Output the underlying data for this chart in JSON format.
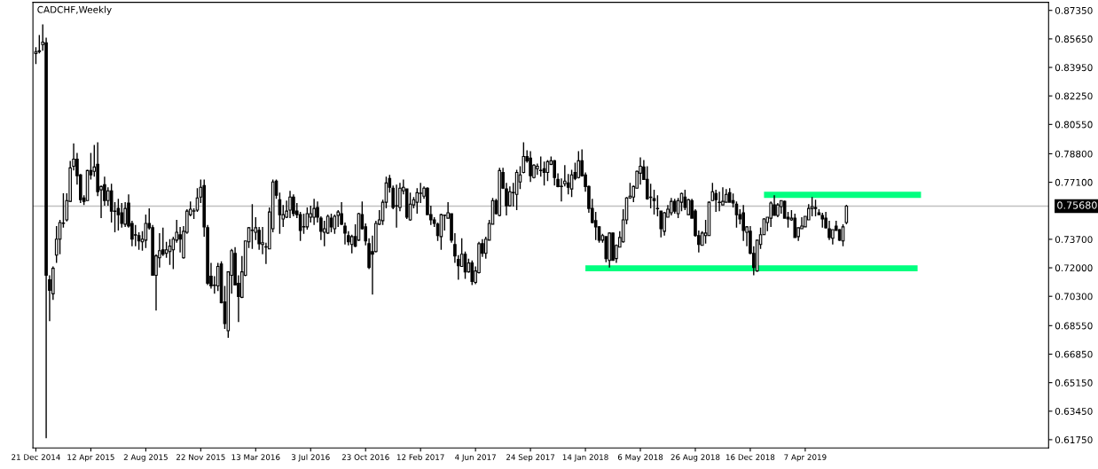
{
  "chart_data": {
    "type": "candlestick",
    "title": "CADCHF,Weekly",
    "color": "#000000",
    "x": [
      "2014-12-21",
      "2014-12-28",
      "2015-01-04",
      "2015-01-11",
      "2015-01-18",
      "2015-01-25",
      "2015-02-01",
      "2015-02-08",
      "2015-02-15",
      "2015-02-22",
      "2015-03-01",
      "2015-03-08",
      "2015-03-15",
      "2015-03-22",
      "2015-03-29",
      "2015-04-05",
      "2015-04-12",
      "2015-04-19",
      "2015-04-26",
      "2015-05-03",
      "2015-05-10",
      "2015-05-17",
      "2015-05-24",
      "2015-05-31",
      "2015-06-07",
      "2015-06-14",
      "2015-06-21",
      "2015-06-28",
      "2015-07-05",
      "2015-07-12",
      "2015-07-19",
      "2015-07-26",
      "2015-08-02",
      "2015-08-09",
      "2015-08-16",
      "2015-08-23",
      "2015-08-30",
      "2015-09-06",
      "2015-09-13",
      "2015-09-20",
      "2015-09-27",
      "2015-10-04",
      "2015-10-11",
      "2015-10-18",
      "2015-10-25",
      "2015-11-01",
      "2015-11-08",
      "2015-11-15",
      "2015-11-22",
      "2015-11-29",
      "2015-12-06",
      "2015-12-13",
      "2015-12-20",
      "2015-12-27",
      "2016-01-03",
      "2016-01-10",
      "2016-01-17",
      "2016-01-24",
      "2016-01-31",
      "2016-02-07",
      "2016-02-14",
      "2016-02-21",
      "2016-02-28",
      "2016-03-06",
      "2016-03-13",
      "2016-03-20",
      "2016-03-27",
      "2016-04-03",
      "2016-04-10",
      "2016-04-17",
      "2016-04-24",
      "2016-05-01",
      "2016-05-08",
      "2016-05-15",
      "2016-05-22",
      "2016-05-29",
      "2016-06-05",
      "2016-06-12",
      "2016-06-19",
      "2016-06-26",
      "2016-07-03",
      "2016-07-10",
      "2016-07-17",
      "2016-07-24",
      "2016-07-31",
      "2016-08-07",
      "2016-08-14",
      "2016-08-21",
      "2016-08-28",
      "2016-09-04",
      "2016-09-11",
      "2016-09-18",
      "2016-09-25",
      "2016-10-02",
      "2016-10-09",
      "2016-10-16",
      "2016-10-23",
      "2016-10-30",
      "2016-11-06",
      "2016-11-13",
      "2016-11-20",
      "2016-11-27",
      "2016-12-04",
      "2016-12-11",
      "2016-12-18",
      "2016-12-25",
      "2017-01-01",
      "2017-01-08",
      "2017-01-15",
      "2017-01-22",
      "2017-01-29",
      "2017-02-05",
      "2017-02-12",
      "2017-02-19",
      "2017-02-26",
      "2017-03-05",
      "2017-03-12",
      "2017-03-19",
      "2017-03-26",
      "2017-04-02",
      "2017-04-09",
      "2017-04-16",
      "2017-04-23",
      "2017-04-30",
      "2017-05-07",
      "2017-05-14",
      "2017-05-21",
      "2017-05-28",
      "2017-06-04",
      "2017-06-11",
      "2017-06-18",
      "2017-06-25",
      "2017-07-02",
      "2017-07-09",
      "2017-07-16",
      "2017-07-23",
      "2017-07-30",
      "2017-08-06",
      "2017-08-13",
      "2017-08-20",
      "2017-08-27",
      "2017-09-03",
      "2017-09-10",
      "2017-09-17",
      "2017-09-24",
      "2017-10-01",
      "2017-10-08",
      "2017-10-15",
      "2017-10-22",
      "2017-10-29",
      "2017-11-05",
      "2017-11-12",
      "2017-11-19",
      "2017-11-26",
      "2017-12-03",
      "2017-12-10",
      "2017-12-17",
      "2017-12-24",
      "2017-12-31",
      "2018-01-07",
      "2018-01-14",
      "2018-01-21",
      "2018-01-28",
      "2018-02-04",
      "2018-02-11",
      "2018-02-18",
      "2018-02-25",
      "2018-03-04",
      "2018-03-11",
      "2018-03-18",
      "2018-03-25",
      "2018-04-01",
      "2018-04-08",
      "2018-04-15",
      "2018-04-22",
      "2018-04-29",
      "2018-05-06",
      "2018-05-13",
      "2018-05-20",
      "2018-05-27",
      "2018-06-03",
      "2018-06-10",
      "2018-06-17",
      "2018-06-24",
      "2018-07-01",
      "2018-07-08",
      "2018-07-15",
      "2018-07-22",
      "2018-07-29",
      "2018-08-05",
      "2018-08-12",
      "2018-08-19",
      "2018-08-26",
      "2018-09-02",
      "2018-09-09",
      "2018-09-16",
      "2018-09-23",
      "2018-09-30",
      "2018-10-07",
      "2018-10-14",
      "2018-10-21",
      "2018-10-28",
      "2018-11-04",
      "2018-11-11",
      "2018-11-18",
      "2018-11-25",
      "2018-12-02",
      "2018-12-09",
      "2018-12-16",
      "2018-12-23",
      "2018-12-30",
      "2019-01-06",
      "2019-01-13",
      "2019-01-20",
      "2019-01-27",
      "2019-02-03",
      "2019-02-10",
      "2019-02-17",
      "2019-02-24",
      "2019-03-03",
      "2019-03-10",
      "2019-03-17",
      "2019-03-24",
      "2019-03-31",
      "2019-04-07",
      "2019-04-14",
      "2019-04-21",
      "2019-04-28",
      "2019-05-05",
      "2019-05-12",
      "2019-05-19",
      "2019-05-26",
      "2019-06-02",
      "2019-06-09",
      "2019-06-16",
      "2019-06-23",
      "2019-06-30"
    ],
    "ohlc": [
      [
        0.8478,
        0.8515,
        0.8415,
        0.8489
      ],
      [
        0.8489,
        0.8588,
        0.8478,
        0.8494
      ],
      [
        0.8531,
        0.8651,
        0.8494,
        0.8546
      ],
      [
        0.8541,
        0.8572,
        0.6184,
        0.7155
      ],
      [
        0.7129,
        0.7155,
        0.6882,
        0.7066
      ],
      [
        0.7045,
        0.7208,
        0.7008,
        0.7197
      ],
      [
        0.7276,
        0.7449,
        0.7229,
        0.7371
      ],
      [
        0.7371,
        0.7486,
        0.7281,
        0.747
      ],
      [
        0.7465,
        0.7644,
        0.7439,
        0.7467
      ],
      [
        0.7486,
        0.7644,
        0.7476,
        0.7601
      ],
      [
        0.7596,
        0.7837,
        0.7591,
        0.7796
      ],
      [
        0.7806,
        0.7942,
        0.778,
        0.7848
      ],
      [
        0.7848,
        0.7885,
        0.7696,
        0.7749
      ],
      [
        0.7754,
        0.7759,
        0.7586,
        0.7606
      ],
      [
        0.7617,
        0.7633,
        0.7575,
        0.7596
      ],
      [
        0.7601,
        0.7785,
        0.7601,
        0.778
      ],
      [
        0.778,
        0.7885,
        0.7727,
        0.7754
      ],
      [
        0.7775,
        0.7932,
        0.7743,
        0.7801
      ],
      [
        0.7817,
        0.7948,
        0.7627,
        0.7654
      ],
      [
        0.7665,
        0.7691,
        0.7496,
        0.7685
      ],
      [
        0.7696,
        0.7743,
        0.757,
        0.7601
      ],
      [
        0.7601,
        0.768,
        0.757,
        0.7659
      ],
      [
        0.7659,
        0.7701,
        0.747,
        0.7538
      ],
      [
        0.7538,
        0.7591,
        0.7412,
        0.7536
      ],
      [
        0.7554,
        0.7612,
        0.7423,
        0.7517
      ],
      [
        0.7528,
        0.7586,
        0.7439,
        0.7465
      ],
      [
        0.746,
        0.7591,
        0.7444,
        0.7554
      ],
      [
        0.7586,
        0.7638,
        0.7439,
        0.7449
      ],
      [
        0.7465,
        0.7481,
        0.7329,
        0.7371
      ],
      [
        0.7397,
        0.7455,
        0.7329,
        0.7395
      ],
      [
        0.7392,
        0.7412,
        0.7307,
        0.736
      ],
      [
        0.7355,
        0.7418,
        0.7302,
        0.7371
      ],
      [
        0.7365,
        0.7517,
        0.7318,
        0.7465
      ],
      [
        0.7465,
        0.7554,
        0.7428,
        0.7439
      ],
      [
        0.7439,
        0.7455,
        0.7155,
        0.7155
      ],
      [
        0.7155,
        0.7281,
        0.6945,
        0.7271
      ],
      [
        0.726,
        0.7407,
        0.7202,
        0.7302
      ],
      [
        0.7307,
        0.7439,
        0.7271,
        0.7281
      ],
      [
        0.7286,
        0.7355,
        0.726,
        0.7307
      ],
      [
        0.7297,
        0.7371,
        0.7218,
        0.7329
      ],
      [
        0.7307,
        0.7386,
        0.7192,
        0.7371
      ],
      [
        0.7365,
        0.7486,
        0.735,
        0.7412
      ],
      [
        0.7397,
        0.7444,
        0.7292,
        0.7371
      ],
      [
        0.726,
        0.7449,
        0.7255,
        0.7418
      ],
      [
        0.7412,
        0.7549,
        0.7402,
        0.7538
      ],
      [
        0.7517,
        0.7596,
        0.7507,
        0.7549
      ],
      [
        0.7538,
        0.7554,
        0.7491,
        0.754
      ],
      [
        0.7544,
        0.7675,
        0.7533,
        0.7617
      ],
      [
        0.7622,
        0.7727,
        0.7586,
        0.768
      ],
      [
        0.7691,
        0.7727,
        0.7386,
        0.7444
      ],
      [
        0.7439,
        0.7455,
        0.7097,
        0.7108
      ],
      [
        0.715,
        0.7229,
        0.7076,
        0.7092
      ],
      [
        0.7097,
        0.715,
        0.7045,
        0.7095
      ],
      [
        0.7092,
        0.7229,
        0.7061,
        0.7208
      ],
      [
        0.7223,
        0.7239,
        0.6987,
        0.6992
      ],
      [
        0.6997,
        0.7092,
        0.6835,
        0.6867
      ],
      [
        0.6825,
        0.7176,
        0.6782,
        0.7176
      ],
      [
        0.7155,
        0.7313,
        0.7045,
        0.7302
      ],
      [
        0.7286,
        0.7323,
        0.7097,
        0.7097
      ],
      [
        0.7108,
        0.7155,
        0.6877,
        0.7029
      ],
      [
        0.7024,
        0.7271,
        0.7019,
        0.7176
      ],
      [
        0.7155,
        0.736,
        0.715,
        0.736
      ],
      [
        0.7355,
        0.7444,
        0.7318,
        0.7439
      ],
      [
        0.7423,
        0.758,
        0.7313,
        0.7425
      ],
      [
        0.7412,
        0.7502,
        0.7365,
        0.7439
      ],
      [
        0.7423,
        0.7444,
        0.7307,
        0.7344
      ],
      [
        0.7339,
        0.7444,
        0.7281,
        0.735
      ],
      [
        0.7323,
        0.735,
        0.7223,
        0.7325
      ],
      [
        0.7313,
        0.756,
        0.7313,
        0.7533
      ],
      [
        0.7433,
        0.7727,
        0.7412,
        0.7712
      ],
      [
        0.7717,
        0.7727,
        0.7612,
        0.7633
      ],
      [
        0.7606,
        0.7648,
        0.7402,
        0.7517
      ],
      [
        0.7491,
        0.7575,
        0.7444,
        0.7517
      ],
      [
        0.7502,
        0.7601,
        0.7496,
        0.7538
      ],
      [
        0.7544,
        0.7659,
        0.7496,
        0.7622
      ],
      [
        0.7622,
        0.7638,
        0.7507,
        0.7523
      ],
      [
        0.7538,
        0.7586,
        0.7496,
        0.7517
      ],
      [
        0.7517,
        0.7533,
        0.736,
        0.7423
      ],
      [
        0.7444,
        0.7523,
        0.7402,
        0.7446
      ],
      [
        0.7444,
        0.756,
        0.7428,
        0.7523
      ],
      [
        0.7502,
        0.757,
        0.747,
        0.7523
      ],
      [
        0.7502,
        0.7612,
        0.7455,
        0.7554
      ],
      [
        0.756,
        0.7596,
        0.747,
        0.7502
      ],
      [
        0.7496,
        0.7507,
        0.7365,
        0.7418
      ],
      [
        0.7412,
        0.7481,
        0.7329,
        0.7433
      ],
      [
        0.7407,
        0.7517,
        0.7402,
        0.7507
      ],
      [
        0.7496,
        0.7523,
        0.7412,
        0.7444
      ],
      [
        0.7433,
        0.7517,
        0.7402,
        0.7507
      ],
      [
        0.7512,
        0.7544,
        0.7444,
        0.7533
      ],
      [
        0.7523,
        0.7591,
        0.7455,
        0.746
      ],
      [
        0.7449,
        0.747,
        0.7339,
        0.7407
      ],
      [
        0.7392,
        0.7418,
        0.7334,
        0.7355
      ],
      [
        0.7339,
        0.7397,
        0.7286,
        0.7386
      ],
      [
        0.7386,
        0.746,
        0.7323,
        0.7329
      ],
      [
        0.7365,
        0.7528,
        0.736,
        0.7523
      ],
      [
        0.7517,
        0.7596,
        0.7428,
        0.7433
      ],
      [
        0.7444,
        0.7465,
        0.7334,
        0.736
      ],
      [
        0.7344,
        0.7376,
        0.7192,
        0.7202
      ],
      [
        0.7297,
        0.7392,
        0.704,
        0.7281
      ],
      [
        0.7297,
        0.7481,
        0.7292,
        0.7465
      ],
      [
        0.746,
        0.7544,
        0.7455,
        0.7486
      ],
      [
        0.7481,
        0.7606,
        0.7455,
        0.7591
      ],
      [
        0.7591,
        0.7743,
        0.7554,
        0.7706
      ],
      [
        0.7733,
        0.7754,
        0.7648,
        0.768
      ],
      [
        0.7675,
        0.7691,
        0.7549,
        0.756
      ],
      [
        0.757,
        0.7696,
        0.7439,
        0.7568
      ],
      [
        0.756,
        0.7706,
        0.7538,
        0.7675
      ],
      [
        0.7659,
        0.7727,
        0.7638,
        0.768
      ],
      [
        0.767,
        0.767,
        0.7491,
        0.7502
      ],
      [
        0.7486,
        0.7648,
        0.7481,
        0.758
      ],
      [
        0.7575,
        0.7622,
        0.7554,
        0.7606
      ],
      [
        0.7591,
        0.7675,
        0.7523,
        0.7648
      ],
      [
        0.7643,
        0.7706,
        0.7586,
        0.7645
      ],
      [
        0.7627,
        0.7685,
        0.7612,
        0.7675
      ],
      [
        0.7675,
        0.768,
        0.7517,
        0.7517
      ],
      [
        0.7517,
        0.757,
        0.7455,
        0.7486
      ],
      [
        0.7486,
        0.7502,
        0.7444,
        0.7465
      ],
      [
        0.746,
        0.747,
        0.736,
        0.7392
      ],
      [
        0.7386,
        0.7523,
        0.7307,
        0.7517
      ],
      [
        0.7512,
        0.7517,
        0.7423,
        0.7514
      ],
      [
        0.7496,
        0.7591,
        0.7496,
        0.7528
      ],
      [
        0.7523,
        0.7523,
        0.735,
        0.7365
      ],
      [
        0.7339,
        0.7407,
        0.7229,
        0.7271
      ],
      [
        0.725,
        0.7276,
        0.7129,
        0.7213
      ],
      [
        0.7208,
        0.7376,
        0.7208,
        0.7281
      ],
      [
        0.7281,
        0.7297,
        0.7134,
        0.7176
      ],
      [
        0.7176,
        0.7255,
        0.7171,
        0.7229
      ],
      [
        0.7229,
        0.7244,
        0.7097,
        0.7118
      ],
      [
        0.7113,
        0.7208,
        0.7102,
        0.7181
      ],
      [
        0.7171,
        0.7355,
        0.7166,
        0.7344
      ],
      [
        0.7344,
        0.7371,
        0.7265,
        0.7286
      ],
      [
        0.7286,
        0.7386,
        0.7255,
        0.7371
      ],
      [
        0.7365,
        0.7486,
        0.7365,
        0.7465
      ],
      [
        0.746,
        0.7617,
        0.746,
        0.7601
      ],
      [
        0.7601,
        0.7612,
        0.7517,
        0.7523
      ],
      [
        0.7512,
        0.7796,
        0.7507,
        0.778
      ],
      [
        0.7769,
        0.7796,
        0.767,
        0.7675
      ],
      [
        0.767,
        0.7706,
        0.7512,
        0.757
      ],
      [
        0.757,
        0.7685,
        0.7565,
        0.7654
      ],
      [
        0.7648,
        0.7706,
        0.7565,
        0.765
      ],
      [
        0.7638,
        0.7785,
        0.7544,
        0.7769
      ],
      [
        0.7712,
        0.7806,
        0.767,
        0.7754
      ],
      [
        0.7769,
        0.7948,
        0.7764,
        0.7864
      ],
      [
        0.7864,
        0.7901,
        0.7827,
        0.7838
      ],
      [
        0.7854,
        0.7896,
        0.7712,
        0.7749
      ],
      [
        0.7738,
        0.7817,
        0.7733,
        0.7812
      ],
      [
        0.7791,
        0.7822,
        0.7754,
        0.7806
      ],
      [
        0.778,
        0.7864,
        0.7743,
        0.7782
      ],
      [
        0.7791,
        0.7833,
        0.7691,
        0.7769
      ],
      [
        0.7769,
        0.7843,
        0.7717,
        0.7833
      ],
      [
        0.7817,
        0.7864,
        0.7812,
        0.7838
      ],
      [
        0.7838,
        0.7843,
        0.7691,
        0.7738
      ],
      [
        0.7727,
        0.7764,
        0.768,
        0.7685
      ],
      [
        0.7685,
        0.7733,
        0.7596,
        0.7687
      ],
      [
        0.7701,
        0.7812,
        0.7685,
        0.7717
      ],
      [
        0.7706,
        0.7759,
        0.7638,
        0.768
      ],
      [
        0.767,
        0.7785,
        0.7622,
        0.7754
      ],
      [
        0.7769,
        0.7827,
        0.7722,
        0.7733
      ],
      [
        0.7738,
        0.7896,
        0.7733,
        0.7838
      ],
      [
        0.7838,
        0.7906,
        0.7743,
        0.7749
      ],
      [
        0.7754,
        0.7769,
        0.7654,
        0.7685
      ],
      [
        0.7685,
        0.7691,
        0.7528,
        0.7554
      ],
      [
        0.7554,
        0.7612,
        0.7465,
        0.747
      ],
      [
        0.7481,
        0.7533,
        0.7365,
        0.7444
      ],
      [
        0.7444,
        0.7449,
        0.735,
        0.7365
      ],
      [
        0.7365,
        0.7402,
        0.735,
        0.7392
      ],
      [
        0.7386,
        0.7386,
        0.7234,
        0.7255
      ],
      [
        0.7244,
        0.7412,
        0.7202,
        0.7407
      ],
      [
        0.7407,
        0.741,
        0.7244,
        0.7244
      ],
      [
        0.7255,
        0.7339,
        0.7229,
        0.7334
      ],
      [
        0.7323,
        0.7418,
        0.7323,
        0.7381
      ],
      [
        0.7355,
        0.7549,
        0.735,
        0.7486
      ],
      [
        0.7486,
        0.7622,
        0.746,
        0.7617
      ],
      [
        0.7617,
        0.7706,
        0.7612,
        0.7627
      ],
      [
        0.7622,
        0.7691,
        0.7591,
        0.7685
      ],
      [
        0.7675,
        0.778,
        0.7675,
        0.7775
      ],
      [
        0.7764,
        0.7859,
        0.7696,
        0.7806
      ],
      [
        0.7801,
        0.7843,
        0.7727,
        0.7727
      ],
      [
        0.7727,
        0.7806,
        0.7606,
        0.7612
      ],
      [
        0.7622,
        0.7701,
        0.7554,
        0.762
      ],
      [
        0.7612,
        0.7665,
        0.7517,
        0.7601
      ],
      [
        0.7554,
        0.7633,
        0.7507,
        0.7552
      ],
      [
        0.7538,
        0.7538,
        0.7381,
        0.7433
      ],
      [
        0.7418,
        0.7533,
        0.7392,
        0.7528
      ],
      [
        0.7502,
        0.7575,
        0.7502,
        0.7549
      ],
      [
        0.7528,
        0.7617,
        0.7512,
        0.7596
      ],
      [
        0.7596,
        0.7612,
        0.7523,
        0.7538
      ],
      [
        0.7523,
        0.7617,
        0.7496,
        0.7601
      ],
      [
        0.7591,
        0.7648,
        0.7538,
        0.7643
      ],
      [
        0.7622,
        0.7665,
        0.7544,
        0.756
      ],
      [
        0.7517,
        0.7612,
        0.7517,
        0.7606
      ],
      [
        0.7601,
        0.7612,
        0.7496,
        0.7496
      ],
      [
        0.7538,
        0.7549,
        0.7386,
        0.7392
      ],
      [
        0.7392,
        0.7423,
        0.7292,
        0.7339
      ],
      [
        0.7334,
        0.7418,
        0.7334,
        0.7407
      ],
      [
        0.7392,
        0.7486,
        0.7344,
        0.7407
      ],
      [
        0.7392,
        0.7596,
        0.7392,
        0.7591
      ],
      [
        0.7601,
        0.7706,
        0.7601,
        0.7654
      ],
      [
        0.7643,
        0.7665,
        0.7533,
        0.7606
      ],
      [
        0.7591,
        0.7654,
        0.7538,
        0.7589
      ],
      [
        0.7575,
        0.768,
        0.7575,
        0.7596
      ],
      [
        0.7591,
        0.767,
        0.7591,
        0.7638
      ],
      [
        0.7648,
        0.7675,
        0.7591,
        0.7591
      ],
      [
        0.7601,
        0.7643,
        0.756,
        0.7586
      ],
      [
        0.758,
        0.7596,
        0.7439,
        0.7517
      ],
      [
        0.7517,
        0.7549,
        0.746,
        0.7491
      ],
      [
        0.7528,
        0.7575,
        0.736,
        0.7423
      ],
      [
        0.7412,
        0.7449,
        0.7329,
        0.7444
      ],
      [
        0.7418,
        0.7449,
        0.7281,
        0.7286
      ],
      [
        0.7286,
        0.7329,
        0.7155,
        0.7202
      ],
      [
        0.7181,
        0.7365,
        0.7176,
        0.7365
      ],
      [
        0.7339,
        0.7439,
        0.7313,
        0.7397
      ],
      [
        0.7397,
        0.7496,
        0.7397,
        0.7491
      ],
      [
        0.747,
        0.7502,
        0.7418,
        0.7502
      ],
      [
        0.7496,
        0.7596,
        0.7444,
        0.7586
      ],
      [
        0.7575,
        0.7633,
        0.7512,
        0.7512
      ],
      [
        0.7512,
        0.7586,
        0.7502,
        0.7575
      ],
      [
        0.7565,
        0.7601,
        0.7523,
        0.7601
      ],
      [
        0.7596,
        0.7601,
        0.7496,
        0.7496
      ],
      [
        0.7502,
        0.7533,
        0.7439,
        0.7491
      ],
      [
        0.7486,
        0.7544,
        0.7481,
        0.7496
      ],
      [
        0.7496,
        0.7523,
        0.7381,
        0.7381
      ],
      [
        0.7386,
        0.7439,
        0.736,
        0.7439
      ],
      [
        0.7433,
        0.7502,
        0.7433,
        0.7449
      ],
      [
        0.7444,
        0.7507,
        0.7444,
        0.7507
      ],
      [
        0.7486,
        0.758,
        0.7486,
        0.7554
      ],
      [
        0.7554,
        0.7622,
        0.7507,
        0.7565
      ],
      [
        0.756,
        0.7606,
        0.7507,
        0.7554
      ],
      [
        0.7528,
        0.7549,
        0.7517,
        0.7517
      ],
      [
        0.7512,
        0.7528,
        0.7439,
        0.7491
      ],
      [
        0.7496,
        0.7533,
        0.7434,
        0.7439
      ],
      [
        0.7433,
        0.7481,
        0.7365,
        0.7381
      ],
      [
        0.7376,
        0.7428,
        0.7339,
        0.7428
      ],
      [
        0.7449,
        0.7481,
        0.7423,
        0.7423
      ],
      [
        0.7428,
        0.743,
        0.736,
        0.7365
      ],
      [
        0.736,
        0.746,
        0.7329,
        0.7444
      ],
      [
        0.747,
        0.7576,
        0.746,
        0.7568
      ]
    ],
    "series": [
      {
        "type": "line",
        "color": "#00ff7f",
        "x": [
          "2018-01-14",
          "2019-11-22"
        ],
        "values": [
          0.7197,
          0.7197
        ]
      },
      {
        "type": "line",
        "color": "#00ff7f",
        "x": [
          "2019-01-13",
          "2019-11-29"
        ],
        "values": [
          0.7635,
          0.7635
        ]
      }
    ],
    "ref_lines": [
      {
        "axis": "y",
        "value": 0.7568,
        "label": "0.75680",
        "color": "#c0c0c0"
      }
    ],
    "xlim": [
      "2014-12-15",
      "2020-08-15"
    ],
    "xticks": [
      {
        "value": "2014-12-21",
        "label": "21 Dec 2014"
      },
      {
        "value": "2015-04-12",
        "label": "12 Apr 2015"
      },
      {
        "value": "2015-08-02",
        "label": "2 Aug 2015"
      },
      {
        "value": "2015-11-22",
        "label": "22 Nov 2015"
      },
      {
        "value": "2016-03-13",
        "label": "13 Mar 2016"
      },
      {
        "value": "2016-07-03",
        "label": "3 Jul 2016"
      },
      {
        "value": "2016-10-23",
        "label": "23 Oct 2016"
      },
      {
        "value": "2017-02-12",
        "label": "12 Feb 2017"
      },
      {
        "value": "2017-06-04",
        "label": "4 Jun 2017"
      },
      {
        "value": "2017-09-24",
        "label": "24 Sep 2017"
      },
      {
        "value": "2018-01-14",
        "label": "14 Jan 2018"
      },
      {
        "value": "2018-05-06",
        "label": "6 May 2018"
      },
      {
        "value": "2018-08-26",
        "label": "26 Aug 2018"
      },
      {
        "value": "2018-12-16",
        "label": "16 Dec 2018"
      },
      {
        "value": "2019-04-07",
        "label": "7 Apr 2019"
      }
    ],
    "ylim": [
      0.6126,
      0.8783
    ],
    "yticks": [
      {
        "value": 0.8735,
        "label": "0.87350"
      },
      {
        "value": 0.8565,
        "label": "0.85650"
      },
      {
        "value": 0.8395,
        "label": "0.83950"
      },
      {
        "value": 0.8225,
        "label": "0.82250"
      },
      {
        "value": 0.8055,
        "label": "0.80550"
      },
      {
        "value": 0.788,
        "label": "0.78800"
      },
      {
        "value": 0.771,
        "label": "0.77100"
      },
      {
        "value": 0.737,
        "label": "0.73700"
      },
      {
        "value": 0.72,
        "label": "0.72000"
      },
      {
        "value": 0.703,
        "label": "0.70300"
      },
      {
        "value": 0.6855,
        "label": "0.68550"
      },
      {
        "value": 0.6685,
        "label": "0.66850"
      },
      {
        "value": 0.6515,
        "label": "0.65150"
      },
      {
        "value": 0.6345,
        "label": "0.63450"
      },
      {
        "value": 0.6175,
        "label": "0.61750"
      }
    ],
    "grid": false
  }
}
